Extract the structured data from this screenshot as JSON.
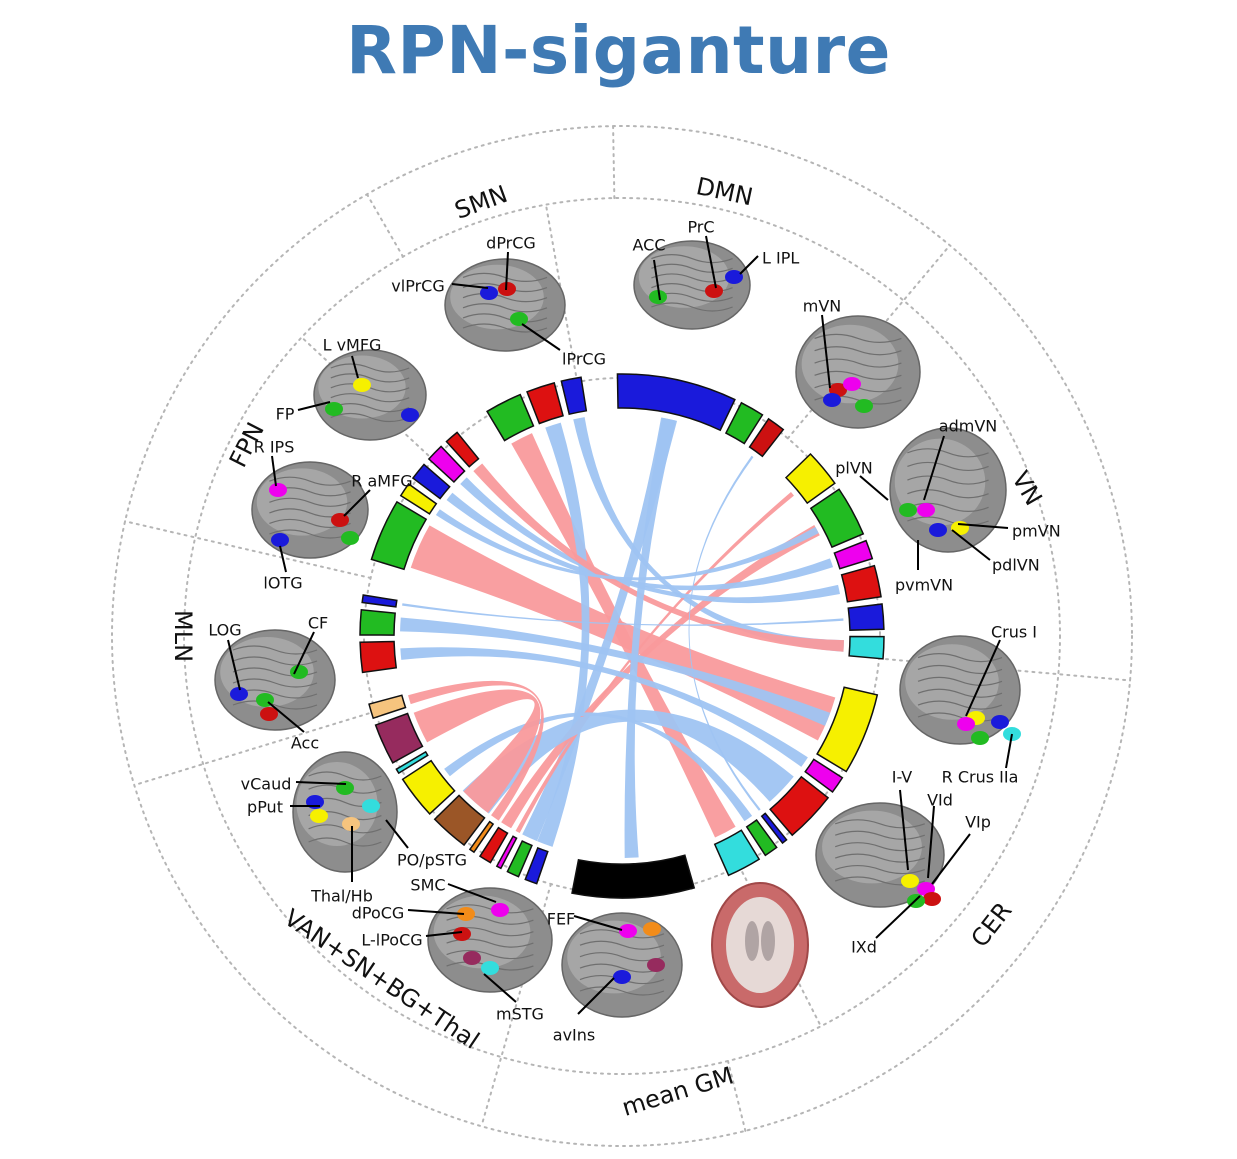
{
  "title": "RPN-siganture",
  "colors": {
    "title": "#3f7ab4",
    "positive_link": "#f99a9c",
    "negative_link": "#9fc4f2",
    "grid": "#b5b5b5",
    "brain": "#8c8c8c"
  },
  "networks": [
    {
      "id": "dmn",
      "label": "DMN"
    },
    {
      "id": "vn",
      "label": "VN"
    },
    {
      "id": "cer",
      "label": "CER"
    },
    {
      "id": "meangm",
      "label": "mean GM"
    },
    {
      "id": "van",
      "label": "VAN+SN+BG+Thal"
    },
    {
      "id": "mln",
      "label": "MLN"
    },
    {
      "id": "fpn",
      "label": "FPN"
    },
    {
      "id": "smn",
      "label": "SMN"
    }
  ],
  "regions": [
    {
      "id": "acc",
      "label": "ACC"
    },
    {
      "id": "prc",
      "label": "PrC"
    },
    {
      "id": "lipl",
      "label": "L IPL"
    },
    {
      "id": "mvn",
      "label": "mVN"
    },
    {
      "id": "admvn",
      "label": "admVN"
    },
    {
      "id": "plvn",
      "label": "plVN"
    },
    {
      "id": "pmvn",
      "label": "pmVN"
    },
    {
      "id": "pdlvn",
      "label": "pdlVN"
    },
    {
      "id": "pvmvn",
      "label": "pvmVN"
    },
    {
      "id": "crusi",
      "label": "Crus I"
    },
    {
      "id": "iv",
      "label": "I-V"
    },
    {
      "id": "rcrusiia",
      "label": "R Crus IIa"
    },
    {
      "id": "vid",
      "label": "VId"
    },
    {
      "id": "vip",
      "label": "VIp"
    },
    {
      "id": "ixd",
      "label": "IXd"
    },
    {
      "id": "fef",
      "label": "FEF"
    },
    {
      "id": "avins",
      "label": "avIns"
    },
    {
      "id": "smc",
      "label": "SMC"
    },
    {
      "id": "dpocg",
      "label": "dPoCG"
    },
    {
      "id": "llpocg",
      "label": "L-lPoCG"
    },
    {
      "id": "mstg",
      "label": "mSTG"
    },
    {
      "id": "vcaud",
      "label": "vCaud"
    },
    {
      "id": "pput",
      "label": "pPut"
    },
    {
      "id": "popstg",
      "label": "PO/pSTG"
    },
    {
      "id": "thalhb",
      "label": "Thal/Hb"
    },
    {
      "id": "log",
      "label": "LOG"
    },
    {
      "id": "cf",
      "label": "CF"
    },
    {
      "id": "acc2",
      "label": "Acc"
    },
    {
      "id": "lvmfg",
      "label": "L vMFG"
    },
    {
      "id": "fp",
      "label": "FP"
    },
    {
      "id": "rips",
      "label": "R IPS"
    },
    {
      "id": "ramfg",
      "label": "R aMFG"
    },
    {
      "id": "lotg",
      "label": "lOTG"
    },
    {
      "id": "dprcg",
      "label": "dPrCG"
    },
    {
      "id": "vlprcg",
      "label": "vlPrCG"
    },
    {
      "id": "lprcg",
      "label": "lPrCG"
    }
  ],
  "nodes": [
    {
      "id": "dmn1",
      "network": "dmn",
      "color": "#1a1adb",
      "weight": 0.1
    },
    {
      "id": "dmn2",
      "network": "dmn",
      "color": "#22bb22",
      "weight": 0.02
    },
    {
      "id": "dmn3",
      "network": "dmn",
      "color": "#cc1111",
      "weight": 0.015
    },
    {
      "id": "vn1",
      "network": "vn",
      "color": "#f6f000",
      "weight": 0.12
    },
    {
      "id": "vn2",
      "network": "vn",
      "color": "#22bb22",
      "weight": 0.16
    },
    {
      "id": "vn3",
      "network": "vn",
      "color": "#ee00ee",
      "weight": 0.06
    },
    {
      "id": "vn4",
      "network": "vn",
      "color": "#dd1111",
      "weight": 0.1
    },
    {
      "id": "vn5",
      "network": "vn",
      "color": "#1a1adb",
      "weight": 0.08
    },
    {
      "id": "vn6",
      "network": "vn",
      "color": "#33dddd",
      "weight": 0.07
    },
    {
      "id": "cer1",
      "network": "cer",
      "color": "#f6f000",
      "weight": 0.24
    },
    {
      "id": "cer2",
      "network": "cer",
      "color": "#ee00ee",
      "weight": 0.05
    },
    {
      "id": "cer3",
      "network": "cer",
      "color": "#dd1111",
      "weight": 0.15
    },
    {
      "id": "cer4",
      "network": "cer",
      "color": "#1a1adb",
      "weight": 0.015
    },
    {
      "id": "cer5",
      "network": "cer",
      "color": "#22bb22",
      "weight": 0.04
    },
    {
      "id": "cer6",
      "network": "cer",
      "color": "#33dddd",
      "weight": 0.1
    },
    {
      "id": "gm1",
      "network": "meangm",
      "color": "#000000",
      "weight": 0.07
    },
    {
      "id": "van1",
      "network": "van",
      "color": "#1a1adb",
      "weight": 0.05
    },
    {
      "id": "van2",
      "network": "van",
      "color": "#22bb22",
      "weight": 0.05
    },
    {
      "id": "van3",
      "network": "van",
      "color": "#ee00ee",
      "weight": 0.01
    },
    {
      "id": "van4",
      "network": "van",
      "color": "#dd1111",
      "weight": 0.05
    },
    {
      "id": "van5",
      "network": "van",
      "color": "#f28c1a",
      "weight": 0.02
    },
    {
      "id": "van6",
      "network": "van",
      "color": "#9b5627",
      "weight": 0.16
    },
    {
      "id": "van7",
      "network": "van",
      "color": "#f6f000",
      "weight": 0.18
    },
    {
      "id": "van8",
      "network": "van",
      "color": "#33dddd",
      "weight": 0.01
    },
    {
      "id": "van9",
      "network": "van",
      "color": "#962b5e",
      "weight": 0.17
    },
    {
      "id": "van10",
      "network": "van",
      "color": "#f6c47e",
      "weight": 0.06
    },
    {
      "id": "mln1",
      "network": "mln",
      "color": "#dd1111",
      "weight": 0.06
    },
    {
      "id": "mln2",
      "network": "mln",
      "color": "#22bb22",
      "weight": 0.05
    },
    {
      "id": "mln3",
      "network": "mln",
      "color": "#1a1adb",
      "weight": 0.015
    },
    {
      "id": "fpn1",
      "network": "fpn",
      "color": "#22bb22",
      "weight": 0.18
    },
    {
      "id": "fpn2",
      "network": "fpn",
      "color": "#f6f000",
      "weight": 0.04
    },
    {
      "id": "fpn3",
      "network": "fpn",
      "color": "#1a1adb",
      "weight": 0.05
    },
    {
      "id": "fpn4",
      "network": "fpn",
      "color": "#ee00ee",
      "weight": 0.05
    },
    {
      "id": "fpn5",
      "network": "fpn",
      "color": "#dd1111",
      "weight": 0.04
    },
    {
      "id": "smn1",
      "network": "smn",
      "color": "#22bb22",
      "weight": 0.13
    },
    {
      "id": "smn2",
      "network": "smn",
      "color": "#dd1111",
      "weight": 0.1
    },
    {
      "id": "smn3",
      "network": "smn",
      "color": "#1a1adb",
      "weight": 0.07
    }
  ],
  "links": [
    {
      "source": "fpn1",
      "target": "cer1",
      "sign": "positive",
      "weight": 0.2
    },
    {
      "source": "smn1",
      "target": "cer6",
      "sign": "positive",
      "weight": 0.1
    },
    {
      "source": "smn2",
      "target": "van1",
      "sign": "negative",
      "weight": 0.07
    },
    {
      "source": "smn3",
      "target": "vn6",
      "sign": "negative",
      "weight": 0.05
    },
    {
      "source": "dmn1",
      "target": "van2",
      "sign": "negative",
      "weight": 0.07
    },
    {
      "source": "vn1",
      "target": "van3",
      "sign": "positive",
      "weight": 0.02
    },
    {
      "source": "vn2",
      "target": "van4",
      "sign": "positive",
      "weight": 0.05
    },
    {
      "source": "vn3",
      "target": "fpn3",
      "sign": "negative",
      "weight": 0.04
    },
    {
      "source": "vn4",
      "target": "fpn4",
      "sign": "negative",
      "weight": 0.04
    },
    {
      "source": "vn6",
      "target": "fpn5",
      "sign": "positive",
      "weight": 0.05
    },
    {
      "source": "cer1",
      "target": "mln2",
      "sign": "negative",
      "weight": 0.06
    },
    {
      "source": "cer2",
      "target": "mln1",
      "sign": "negative",
      "weight": 0.05
    },
    {
      "source": "cer3",
      "target": "van6",
      "sign": "negative",
      "weight": 0.15
    },
    {
      "source": "cer5",
      "target": "van7",
      "sign": "negative",
      "weight": 0.04
    },
    {
      "source": "gm1",
      "target": "dmn1",
      "sign": "negative",
      "weight": 0.06
    },
    {
      "source": "van9",
      "target": "van6",
      "sign": "positive",
      "weight": 0.14
    },
    {
      "source": "van10",
      "target": "van5",
      "sign": "positive",
      "weight": 0.04
    },
    {
      "source": "mln3",
      "target": "vn5",
      "sign": "negative",
      "weight": 0.01
    },
    {
      "source": "fpn2",
      "target": "vn2",
      "sign": "negative",
      "weight": 0.03
    },
    {
      "source": "dmn3",
      "target": "cer4",
      "sign": "negative",
      "weight": 0.01
    }
  ]
}
